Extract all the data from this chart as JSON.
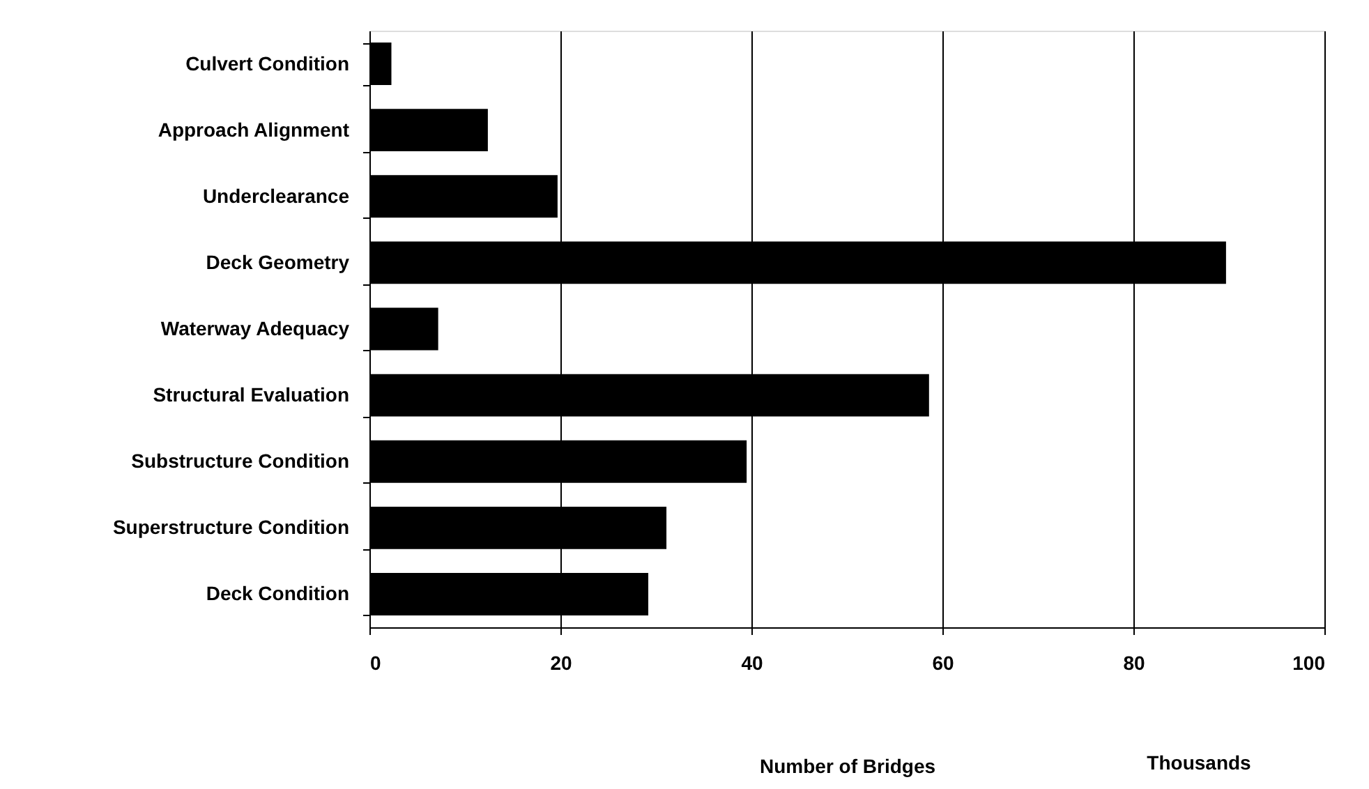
{
  "chart_data": {
    "type": "bar",
    "orientation": "horizontal",
    "categories": [
      "Culvert Condition",
      "Approach Alignment",
      "Underclearance",
      "Deck Geometry",
      "Waterway Adequacy",
      "Structural Evaluation",
      "Substructure Condition",
      "Superstructure Condition",
      "Deck Condition"
    ],
    "values": [
      2.3,
      12.4,
      19.7,
      89.7,
      7.2,
      58.6,
      39.5,
      31.1,
      29.2
    ],
    "color": "#000000",
    "xlim": [
      0,
      100
    ],
    "xticks": [
      0,
      20,
      40,
      60,
      80,
      100
    ],
    "xlabel": "Number of Bridges",
    "annotations": [
      "Thousands"
    ],
    "grid": "x"
  }
}
